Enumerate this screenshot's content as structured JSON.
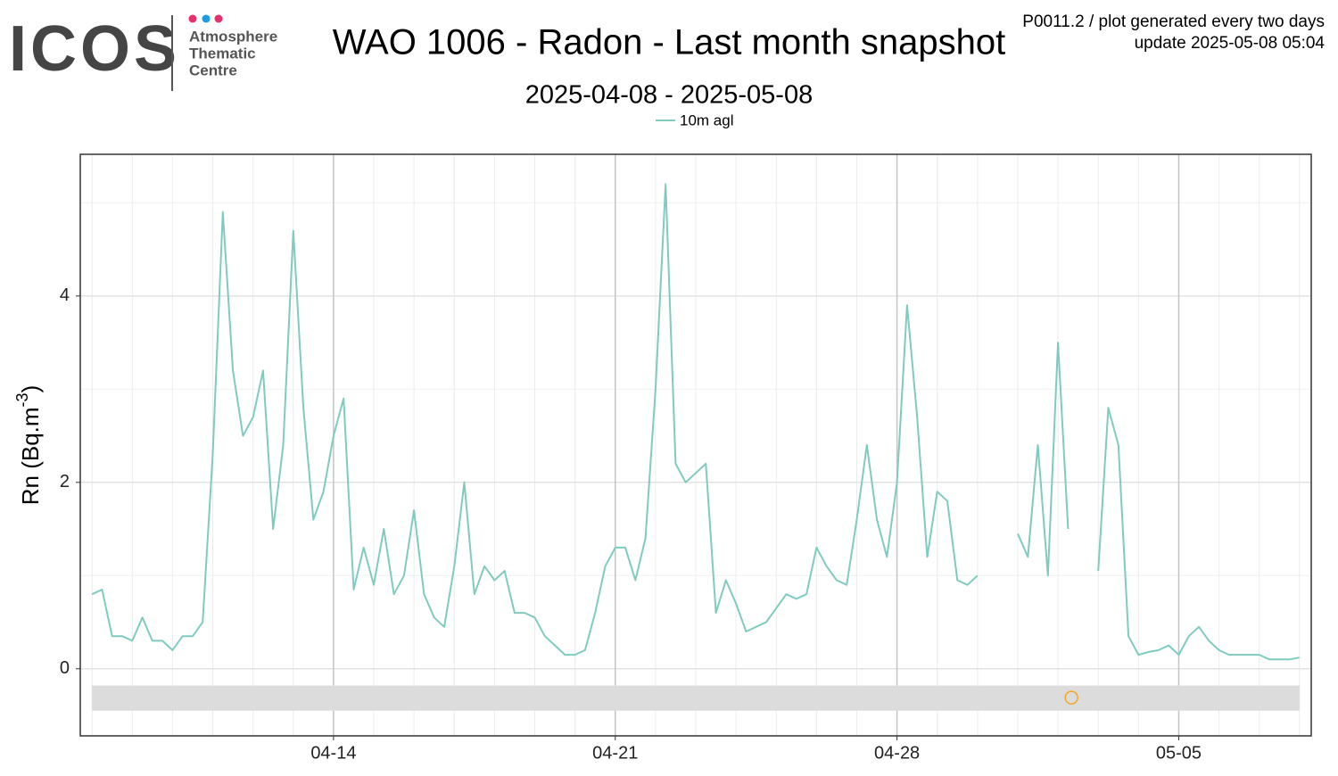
{
  "logo": {
    "name": "ICOS",
    "lines": [
      "Atmosphere",
      "Thematic",
      "Centre"
    ]
  },
  "header": {
    "info": [
      "P0011.2 / plot generated every two days",
      "update  2025-05-08 05:04"
    ]
  },
  "chart_data": {
    "type": "line",
    "title": "WAO 1006 - Radon - Last month snapshot",
    "subtitle": "2025-04-08 - 2025-05-08",
    "y_label": {
      "text": "Rn (Bq.m",
      "superscript": "-3",
      "suffix": ")"
    },
    "xlim": [
      "2025-04-07 17:00",
      "2025-05-08 07:00"
    ],
    "ylim": [
      -0.72,
      5.52
    ],
    "yticks": [
      0,
      2,
      4
    ],
    "y_minor_ticks": [
      1,
      3,
      5
    ],
    "xticks": [
      {
        "value": "2025-04-14 00:00",
        "label": "04-14"
      },
      {
        "value": "2025-04-21 00:00",
        "label": "04-21"
      },
      {
        "value": "2025-04-28 00:00",
        "label": "04-28"
      },
      {
        "value": "2025-05-05 00:00",
        "label": "05-05"
      }
    ],
    "x_minor_ticks": [
      "2025-04-08 00:00",
      "2025-04-09 00:00",
      "2025-04-10 00:00",
      "2025-04-11 00:00",
      "2025-04-12 00:00",
      "2025-04-13 00:00",
      "2025-04-15 00:00",
      "2025-04-16 00:00",
      "2025-04-17 00:00",
      "2025-04-18 00:00",
      "2025-04-19 00:00",
      "2025-04-20 00:00",
      "2025-04-22 00:00",
      "2025-04-23 00:00",
      "2025-04-24 00:00",
      "2025-04-25 00:00",
      "2025-04-26 00:00",
      "2025-04-27 00:00",
      "2025-04-29 00:00",
      "2025-04-30 00:00",
      "2025-05-01 00:00",
      "2025-05-02 00:00",
      "2025-05-03 00:00",
      "2025-05-04 00:00",
      "2025-05-06 00:00",
      "2025-05-07 00:00",
      "2025-05-08 00:00"
    ],
    "grid": true,
    "legend": "top",
    "x": [
      "2025-04-08 00:00",
      "2025-04-08 06:00",
      "2025-04-08 12:00",
      "2025-04-08 18:00",
      "2025-04-09 00:00",
      "2025-04-09 06:00",
      "2025-04-09 12:00",
      "2025-04-09 18:00",
      "2025-04-10 00:00",
      "2025-04-10 06:00",
      "2025-04-10 12:00",
      "2025-04-10 18:00",
      "2025-04-11 00:00",
      "2025-04-11 06:00",
      "2025-04-11 12:00",
      "2025-04-11 18:00",
      "2025-04-12 00:00",
      "2025-04-12 06:00",
      "2025-04-12 12:00",
      "2025-04-12 18:00",
      "2025-04-13 00:00",
      "2025-04-13 06:00",
      "2025-04-13 12:00",
      "2025-04-13 18:00",
      "2025-04-14 00:00",
      "2025-04-14 06:00",
      "2025-04-14 12:00",
      "2025-04-14 18:00",
      "2025-04-15 00:00",
      "2025-04-15 06:00",
      "2025-04-15 12:00",
      "2025-04-15 18:00",
      "2025-04-16 00:00",
      "2025-04-16 06:00",
      "2025-04-16 12:00",
      "2025-04-16 18:00",
      "2025-04-17 00:00",
      "2025-04-17 06:00",
      "2025-04-17 12:00",
      "2025-04-17 18:00",
      "2025-04-18 00:00",
      "2025-04-18 06:00",
      "2025-04-18 12:00",
      "2025-04-18 18:00",
      "2025-04-19 00:00",
      "2025-04-19 06:00",
      "2025-04-19 12:00",
      "2025-04-19 18:00",
      "2025-04-20 00:00",
      "2025-04-20 06:00",
      "2025-04-20 12:00",
      "2025-04-20 18:00",
      "2025-04-21 00:00",
      "2025-04-21 06:00",
      "2025-04-21 12:00",
      "2025-04-21 18:00",
      "2025-04-22 00:00",
      "2025-04-22 06:00",
      "2025-04-22 12:00",
      "2025-04-22 18:00",
      "2025-04-23 00:00",
      "2025-04-23 06:00",
      "2025-04-23 12:00",
      "2025-04-23 18:00",
      "2025-04-24 00:00",
      "2025-04-24 06:00",
      "2025-04-24 12:00",
      "2025-04-24 18:00",
      "2025-04-25 00:00",
      "2025-04-25 06:00",
      "2025-04-25 12:00",
      "2025-04-25 18:00",
      "2025-04-26 00:00",
      "2025-04-26 06:00",
      "2025-04-26 12:00",
      "2025-04-26 18:00",
      "2025-04-27 00:00",
      "2025-04-27 06:00",
      "2025-04-27 12:00",
      "2025-04-27 18:00",
      "2025-04-28 00:00",
      "2025-04-28 06:00",
      "2025-04-28 12:00",
      "2025-04-28 18:00",
      "2025-04-29 00:00",
      "2025-04-29 06:00",
      "2025-04-29 12:00",
      "2025-04-29 18:00",
      "2025-04-30 00:00",
      "2025-04-30 06:00",
      "2025-04-30 12:00",
      "2025-04-30 18:00",
      "2025-05-01 00:00",
      "2025-05-01 06:00",
      "2025-05-01 12:00",
      "2025-05-01 18:00",
      "2025-05-02 00:00",
      "2025-05-02 06:00",
      "2025-05-02 12:00",
      "2025-05-02 18:00",
      "2025-05-03 00:00",
      "2025-05-03 06:00",
      "2025-05-03 12:00",
      "2025-05-03 18:00",
      "2025-05-04 00:00",
      "2025-05-04 06:00",
      "2025-05-04 12:00",
      "2025-05-04 18:00",
      "2025-05-05 00:00",
      "2025-05-05 06:00",
      "2025-05-05 12:00",
      "2025-05-05 18:00",
      "2025-05-06 00:00",
      "2025-05-06 06:00",
      "2025-05-06 12:00",
      "2025-05-06 18:00",
      "2025-05-07 00:00",
      "2025-05-07 06:00",
      "2025-05-07 12:00",
      "2025-05-07 18:00",
      "2025-05-08 00:00"
    ],
    "series": [
      {
        "name": "10m agl",
        "color": "#80cbbf",
        "values": [
          0.8,
          0.85,
          0.35,
          0.35,
          0.3,
          0.55,
          0.3,
          0.3,
          0.2,
          0.35,
          0.35,
          0.5,
          2.3,
          4.9,
          3.2,
          2.5,
          2.7,
          3.2,
          1.5,
          2.4,
          4.7,
          2.8,
          1.6,
          1.9,
          2.5,
          2.9,
          0.85,
          1.3,
          0.9,
          1.5,
          0.8,
          1.0,
          1.7,
          0.8,
          0.55,
          0.45,
          1.1,
          2.0,
          0.8,
          1.1,
          0.95,
          1.05,
          0.6,
          0.6,
          0.55,
          0.35,
          0.25,
          0.15,
          0.15,
          0.2,
          0.6,
          1.1,
          1.3,
          1.3,
          0.95,
          1.4,
          3.0,
          5.2,
          2.2,
          2.0,
          2.1,
          2.2,
          0.6,
          0.95,
          0.7,
          0.4,
          0.45,
          0.5,
          0.65,
          0.8,
          0.75,
          0.8,
          1.3,
          1.1,
          0.95,
          0.9,
          1.6,
          2.4,
          1.6,
          1.2,
          2.0,
          3.9,
          2.7,
          1.2,
          1.9,
          1.8,
          0.95,
          0.9,
          1.0,
          null,
          null,
          null,
          1.45,
          1.2,
          2.4,
          1.0,
          3.5,
          1.5,
          null,
          null,
          1.05,
          2.8,
          2.4,
          0.35,
          0.15,
          0.18,
          0.2,
          0.25,
          0.15,
          0.35,
          0.45,
          0.3,
          0.2,
          0.15,
          0.15,
          0.15,
          0.15,
          0.1,
          0.1,
          0.1,
          0.12
        ]
      }
    ],
    "flag_band": {
      "x": [
        "2025-04-08 00:00",
        "2025-05-08 00:00"
      ],
      "y": [
        -0.45,
        -0.18
      ],
      "color": "#dcdcdc"
    },
    "flags": [
      {
        "x": "2025-05-02 08:00",
        "y": -0.31,
        "color": "#f5a623"
      }
    ]
  }
}
